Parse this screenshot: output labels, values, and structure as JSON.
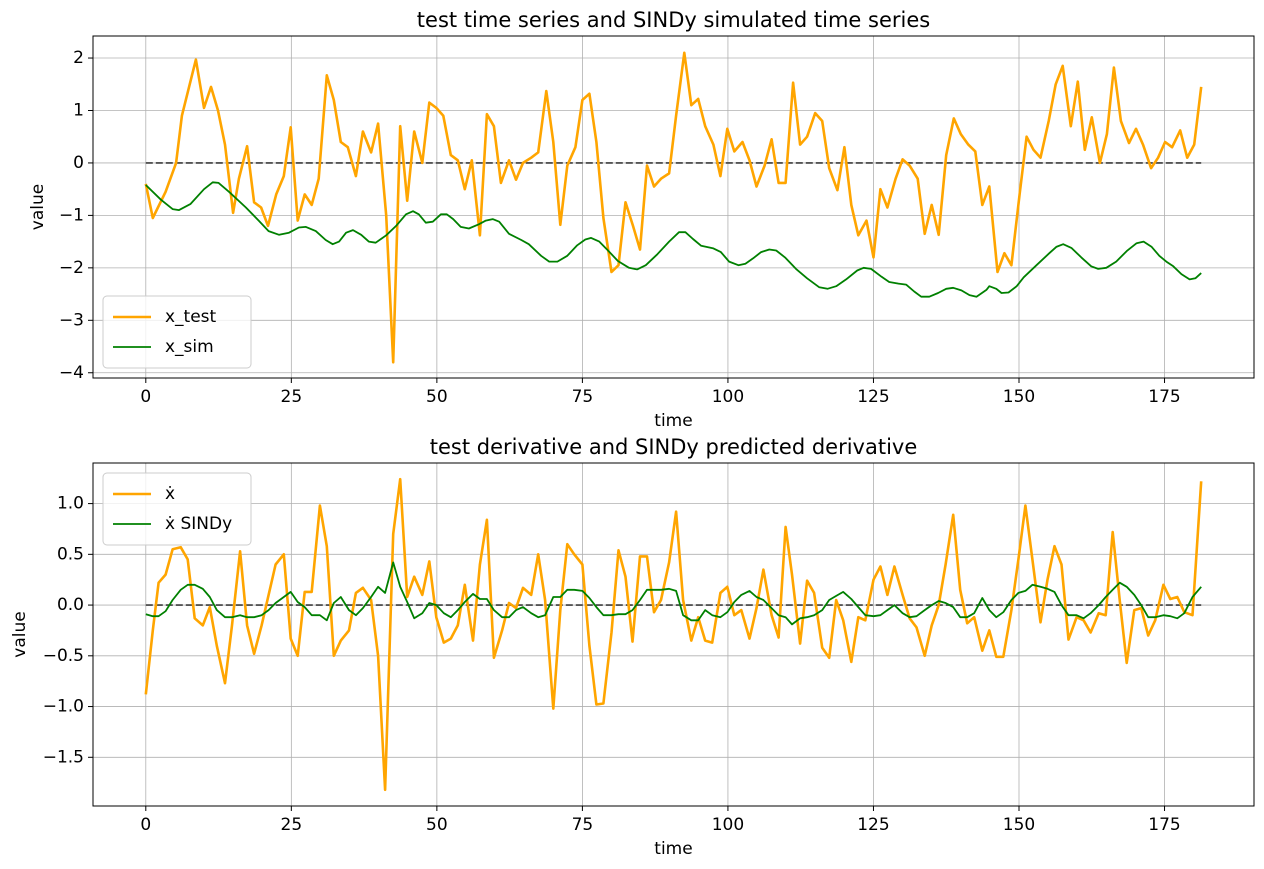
{
  "chart_data": [
    {
      "type": "line",
      "title": "test time series and SINDy simulated time series",
      "xlabel": "time",
      "ylabel": "value",
      "xlim": [
        -9.07,
        190.37
      ],
      "ylim": [
        -4.1,
        2.42
      ],
      "xticks": [
        0,
        25,
        50,
        75,
        100,
        125,
        150,
        175
      ],
      "yticks": [
        {
          "value": -4,
          "label": "−4"
        },
        {
          "value": -3,
          "label": "−3"
        },
        {
          "value": -2,
          "label": "−2"
        },
        {
          "value": -1,
          "label": "−1"
        },
        0,
        1,
        2
      ],
      "grid": true,
      "legend": "lower left",
      "hline": 0,
      "series": [
        {
          "name": "x_test",
          "color": "#ffa500",
          "x": [
            0,
            1.2,
            3.4,
            5.2,
            6.2,
            8.6,
            10.0,
            11.2,
            12.4,
            13.6,
            15.0,
            16.0,
            17.4,
            18.6,
            19.8,
            21.0,
            22.4,
            23.7,
            24.9,
            26.1,
            27.3,
            28.5,
            29.7,
            31.1,
            32.3,
            33.5,
            34.7,
            36.1,
            37.3,
            38.7,
            39.9,
            41.3,
            42.5,
            43.7,
            44.9,
            46.1,
            47.5,
            48.7,
            49.9,
            51.1,
            52.4,
            53.6,
            54.8,
            56.0,
            57.4,
            58.6,
            59.8,
            61.0,
            62.4,
            63.6,
            64.8,
            66.2,
            67.4,
            68.8,
            70.0,
            71.2,
            72.4,
            73.8,
            75.0,
            76.2,
            77.4,
            78.6,
            80.0,
            81.2,
            82.4,
            83.7,
            84.9,
            86.1,
            87.3,
            88.5,
            89.9,
            91.1,
            92.5,
            93.7,
            94.9,
            96.1,
            97.5,
            98.7,
            99.9,
            101.1,
            102.5,
            103.7,
            104.9,
            106.3,
            107.5,
            108.7,
            109.9,
            111.2,
            112.4,
            113.6,
            115.0,
            116.2,
            117.4,
            118.8,
            120.0,
            121.2,
            122.4,
            123.8,
            125.0,
            126.2,
            127.4,
            128.8,
            130.0,
            131.2,
            132.6,
            133.8,
            135.0,
            136.2,
            137.5,
            138.8,
            140.0,
            141.3,
            142.5,
            143.7,
            144.9,
            146.3,
            147.5,
            148.7,
            150.1,
            151.3,
            152.5,
            153.7,
            155.1,
            156.3,
            157.5,
            158.9,
            160.1,
            161.3,
            162.5,
            163.9,
            165.1,
            166.3,
            167.5,
            168.9,
            170.1,
            171.3,
            172.7,
            173.9,
            175.1,
            176.3,
            177.7,
            178.9,
            180.1,
            181.3
          ],
          "values": [
            -0.4,
            -1.05,
            -0.55,
            0.0,
            0.9,
            1.97,
            1.05,
            1.45,
            1.0,
            0.35,
            -0.95,
            -0.3,
            0.32,
            -0.75,
            -0.85,
            -1.2,
            -0.6,
            -0.25,
            0.68,
            -1.1,
            -0.6,
            -0.8,
            -0.3,
            1.67,
            1.2,
            0.4,
            0.3,
            -0.25,
            0.6,
            0.2,
            0.75,
            -1.0,
            -3.8,
            0.7,
            -0.72,
            0.6,
            0.0,
            1.15,
            1.05,
            0.9,
            0.15,
            0.05,
            -0.5,
            0.05,
            -1.38,
            0.93,
            0.7,
            -0.38,
            0.05,
            -0.32,
            0.0,
            0.1,
            0.2,
            1.37,
            0.4,
            -1.18,
            -0.05,
            0.3,
            1.2,
            1.32,
            0.4,
            -1.05,
            -2.08,
            -1.95,
            -0.75,
            -1.2,
            -1.65,
            -0.05,
            -0.45,
            -0.3,
            -0.2,
            0.9,
            2.1,
            1.1,
            1.22,
            0.7,
            0.35,
            -0.25,
            0.65,
            0.22,
            0.4,
            0.05,
            -0.45,
            -0.05,
            0.45,
            -0.38,
            -0.38,
            1.53,
            0.35,
            0.5,
            0.95,
            0.8,
            -0.1,
            -0.52,
            0.3,
            -0.8,
            -1.38,
            -1.1,
            -1.8,
            -0.5,
            -0.85,
            -0.3,
            0.07,
            -0.05,
            -0.3,
            -1.35,
            -0.8,
            -1.37,
            0.15,
            0.85,
            0.55,
            0.35,
            0.22,
            -0.8,
            -0.45,
            -2.08,
            -1.72,
            -1.95,
            -0.6,
            0.5,
            0.25,
            0.1,
            0.8,
            1.5,
            1.85,
            0.7,
            1.55,
            0.25,
            0.87,
            0.0,
            0.55,
            1.82,
            0.8,
            0.38,
            0.65,
            0.35,
            -0.1,
            0.1,
            0.4,
            0.3,
            0.62,
            0.1,
            0.35,
            1.45
          ]
        },
        {
          "name": "x_sim",
          "color": "#008000",
          "x": [
            0,
            2.6,
            4.6,
            5.7,
            7.7,
            10.0,
            11.5,
            12.5,
            14.3,
            17.2,
            19.4,
            21.1,
            22.9,
            24.6,
            26.3,
            27.5,
            29.2,
            30.9,
            32.1,
            33.2,
            34.4,
            35.6,
            37.0,
            38.3,
            39.5,
            41.3,
            43.0,
            44.7,
            45.9,
            46.9,
            48.1,
            49.3,
            50.7,
            51.7,
            52.8,
            54.1,
            55.5,
            57.2,
            58.4,
            59.6,
            60.7,
            62.4,
            64.5,
            65.8,
            67.9,
            69.3,
            70.7,
            72.4,
            74.1,
            75.5,
            76.5,
            77.9,
            79.4,
            81.1,
            83.0,
            84.4,
            85.9,
            87.8,
            89.9,
            91.6,
            92.7,
            94.0,
            95.4,
            97.5,
            98.8,
            100.2,
            101.8,
            103.0,
            104.3,
            105.7,
            107.1,
            108.3,
            109.8,
            111.7,
            113.6,
            115.7,
            117.1,
            118.6,
            120.3,
            122.2,
            123.3,
            124.6,
            126.4,
            127.7,
            129.3,
            130.6,
            132.0,
            133.2,
            134.6,
            136.1,
            137.5,
            138.7,
            140.1,
            141.5,
            142.7,
            144.4,
            144.9,
            146.1,
            147.0,
            148.2,
            149.6,
            150.8,
            153.0,
            155.2,
            156.4,
            157.6,
            159.0,
            160.7,
            162.4,
            163.6,
            165.0,
            166.7,
            168.5,
            170.2,
            171.4,
            172.8,
            174.1,
            175.3,
            176.5,
            177.9,
            179.3,
            180.3,
            181.3
          ],
          "values": [
            -0.42,
            -0.7,
            -0.88,
            -0.9,
            -0.78,
            -0.5,
            -0.37,
            -0.38,
            -0.55,
            -0.85,
            -1.1,
            -1.3,
            -1.37,
            -1.33,
            -1.23,
            -1.22,
            -1.3,
            -1.47,
            -1.55,
            -1.5,
            -1.33,
            -1.28,
            -1.37,
            -1.5,
            -1.52,
            -1.38,
            -1.2,
            -0.98,
            -0.92,
            -0.98,
            -1.14,
            -1.12,
            -0.98,
            -0.98,
            -1.07,
            -1.22,
            -1.25,
            -1.17,
            -1.1,
            -1.07,
            -1.12,
            -1.35,
            -1.47,
            -1.55,
            -1.77,
            -1.88,
            -1.88,
            -1.77,
            -1.57,
            -1.46,
            -1.43,
            -1.5,
            -1.67,
            -1.87,
            -2.0,
            -2.03,
            -1.95,
            -1.75,
            -1.5,
            -1.32,
            -1.32,
            -1.45,
            -1.58,
            -1.63,
            -1.7,
            -1.88,
            -1.95,
            -1.92,
            -1.82,
            -1.7,
            -1.65,
            -1.67,
            -1.8,
            -2.02,
            -2.2,
            -2.37,
            -2.4,
            -2.35,
            -2.22,
            -2.05,
            -2.0,
            -2.02,
            -2.17,
            -2.27,
            -2.3,
            -2.32,
            -2.45,
            -2.55,
            -2.55,
            -2.48,
            -2.4,
            -2.38,
            -2.43,
            -2.52,
            -2.55,
            -2.42,
            -2.35,
            -2.4,
            -2.48,
            -2.47,
            -2.35,
            -2.18,
            -1.95,
            -1.72,
            -1.6,
            -1.55,
            -1.62,
            -1.8,
            -1.97,
            -2.02,
            -2.0,
            -1.88,
            -1.68,
            -1.53,
            -1.5,
            -1.6,
            -1.77,
            -1.88,
            -1.97,
            -2.12,
            -2.22,
            -2.2,
            -2.1
          ]
        }
      ]
    },
    {
      "type": "line",
      "title": "test derivative and SINDy predicted derivative",
      "xlabel": "time",
      "ylabel": "value",
      "xlim": [
        -9.07,
        190.37
      ],
      "ylim": [
        -1.98,
        1.4
      ],
      "xticks": [
        0,
        25,
        50,
        75,
        100,
        125,
        150,
        175
      ],
      "yticks": [
        {
          "value": -1.5,
          "label": "−1.5"
        },
        {
          "value": -1.0,
          "label": "−1.0"
        },
        {
          "value": -0.5,
          "label": "−0.5"
        },
        {
          "value": 0,
          "label": "0.0"
        },
        0.5,
        {
          "value": 1,
          "label": "1.0"
        }
      ],
      "grid": true,
      "legend": "upper left",
      "hline": 0,
      "x": [
        0,
        1.2,
        2.2,
        3.4,
        4.6,
        6.0,
        7.2,
        8.4,
        9.8,
        11.0,
        12.2,
        13.6,
        14.8,
        16.2,
        17.4,
        18.6,
        19.9,
        21.1,
        22.3,
        23.7,
        24.9,
        26.1,
        27.3,
        28.5,
        29.9,
        31.1,
        32.3,
        33.5,
        34.9,
        36.1,
        37.3,
        38.7,
        39.9,
        41.1,
        42.5,
        43.7,
        44.9,
        46.1,
        47.5,
        48.7,
        49.9,
        51.2,
        52.4,
        53.6,
        54.8,
        56.2,
        57.4,
        58.6,
        59.8,
        61.2,
        62.4,
        63.6,
        64.8,
        66.2,
        67.4,
        68.6,
        70.0,
        71.2,
        72.4,
        73.6,
        75.0,
        76.2,
        77.4,
        78.6,
        80.0,
        81.2,
        82.4,
        83.6,
        84.9,
        86.1,
        87.3,
        88.5,
        89.9,
        91.1,
        92.3,
        93.7,
        94.9,
        96.1,
        97.3,
        98.7,
        99.9,
        101.1,
        102.3,
        103.7,
        104.9,
        106.1,
        107.5,
        108.7,
        109.9,
        111.0,
        112.4,
        113.6,
        114.8,
        116.2,
        117.4,
        118.6,
        119.8,
        121.2,
        122.4,
        123.6,
        125.0,
        126.2,
        127.4,
        128.6,
        130.0,
        131.2,
        132.4,
        133.8,
        135.0,
        136.2,
        137.4,
        138.7,
        139.9,
        141.1,
        142.3,
        143.7,
        144.9,
        146.1,
        147.3,
        148.7,
        149.9,
        151.1,
        152.3,
        153.7,
        154.9,
        156.1,
        157.3,
        158.5,
        159.9,
        161.1,
        162.3,
        163.7,
        164.9,
        166.1,
        167.3,
        168.5,
        169.8,
        171.0,
        172.2,
        173.4,
        174.8,
        176.0,
        177.2,
        178.4,
        179.8,
        181.3
      ],
      "series": [
        {
          "name": "ẋ",
          "color": "#ffa500",
          "values": [
            -0.88,
            -0.25,
            0.22,
            0.3,
            0.55,
            0.57,
            0.45,
            -0.13,
            -0.2,
            -0.02,
            -0.4,
            -0.77,
            -0.2,
            0.53,
            -0.2,
            -0.48,
            -0.2,
            0.1,
            0.4,
            0.5,
            -0.33,
            -0.5,
            0.13,
            0.13,
            0.98,
            0.58,
            -0.5,
            -0.35,
            -0.25,
            0.12,
            0.17,
            0.05,
            -0.5,
            -1.82,
            0.7,
            1.24,
            0.08,
            0.28,
            0.1,
            0.43,
            -0.12,
            -0.37,
            -0.33,
            -0.2,
            0.2,
            -0.35,
            0.4,
            0.84,
            -0.52,
            -0.25,
            0.02,
            -0.03,
            0.17,
            0.1,
            0.5,
            0.05,
            -1.02,
            -0.05,
            0.6,
            0.5,
            0.4,
            -0.4,
            -0.98,
            -0.97,
            -0.27,
            0.54,
            0.28,
            -0.36,
            0.48,
            0.48,
            -0.07,
            0.05,
            0.42,
            0.92,
            0.05,
            -0.35,
            -0.12,
            -0.35,
            -0.37,
            0.12,
            0.18,
            -0.1,
            -0.05,
            -0.33,
            -0.03,
            0.35,
            -0.1,
            -0.32,
            0.77,
            0.3,
            -0.38,
            0.24,
            0.12,
            -0.42,
            -0.52,
            0.05,
            -0.15,
            -0.56,
            -0.12,
            -0.15,
            0.25,
            0.38,
            0.1,
            0.38,
            0.1,
            -0.13,
            -0.22,
            -0.5,
            -0.2,
            0.0,
            0.4,
            0.89,
            0.15,
            -0.18,
            -0.12,
            -0.45,
            -0.25,
            -0.51,
            -0.51,
            -0.05,
            0.45,
            0.98,
            0.45,
            -0.17,
            0.25,
            0.58,
            0.4,
            -0.34,
            -0.12,
            -0.15,
            -0.27,
            -0.08,
            -0.1,
            0.72,
            0.05,
            -0.57,
            -0.05,
            -0.03,
            -0.3,
            -0.15,
            0.2,
            0.06,
            0.08,
            -0.07,
            -0.1,
            1.22
          ]
        },
        {
          "name": "ẋ SINDy",
          "color": "#008000",
          "values": [
            -0.09,
            -0.11,
            -0.11,
            -0.06,
            0.05,
            0.15,
            0.2,
            0.2,
            0.16,
            0.08,
            -0.05,
            -0.12,
            -0.12,
            -0.1,
            -0.12,
            -0.12,
            -0.1,
            -0.05,
            0.02,
            0.08,
            0.13,
            0.03,
            -0.02,
            -0.1,
            -0.1,
            -0.15,
            0.02,
            0.08,
            -0.05,
            -0.1,
            -0.03,
            0.08,
            0.18,
            0.12,
            0.42,
            0.18,
            0.03,
            -0.13,
            -0.08,
            0.02,
            0.0,
            -0.08,
            -0.12,
            -0.05,
            0.03,
            0.11,
            0.06,
            0.06,
            -0.05,
            -0.12,
            -0.12,
            -0.05,
            -0.02,
            -0.08,
            -0.12,
            -0.1,
            0.08,
            0.08,
            0.15,
            0.15,
            0.14,
            0.07,
            -0.02,
            -0.1,
            -0.1,
            -0.09,
            -0.09,
            -0.05,
            0.05,
            0.15,
            0.15,
            0.15,
            0.16,
            0.14,
            -0.1,
            -0.15,
            -0.15,
            -0.05,
            -0.1,
            -0.12,
            -0.07,
            0.03,
            0.1,
            0.14,
            0.08,
            0.05,
            -0.03,
            -0.1,
            -0.12,
            -0.19,
            -0.13,
            -0.12,
            -0.1,
            -0.05,
            0.05,
            0.09,
            0.13,
            0.06,
            -0.02,
            -0.1,
            -0.11,
            -0.1,
            -0.05,
            0.0,
            -0.08,
            -0.12,
            -0.11,
            -0.05,
            0.0,
            0.04,
            0.02,
            -0.02,
            -0.12,
            -0.12,
            -0.08,
            0.07,
            -0.05,
            -0.12,
            -0.07,
            0.05,
            0.12,
            0.14,
            0.2,
            0.18,
            0.16,
            0.13,
            0.0,
            -0.1,
            -0.1,
            -0.13,
            -0.08,
            0.0,
            0.08,
            0.15,
            0.22,
            0.18,
            0.1,
            0.0,
            -0.12,
            -0.12,
            -0.1,
            -0.11,
            -0.13,
            -0.08,
            0.08,
            0.18
          ]
        }
      ]
    }
  ]
}
